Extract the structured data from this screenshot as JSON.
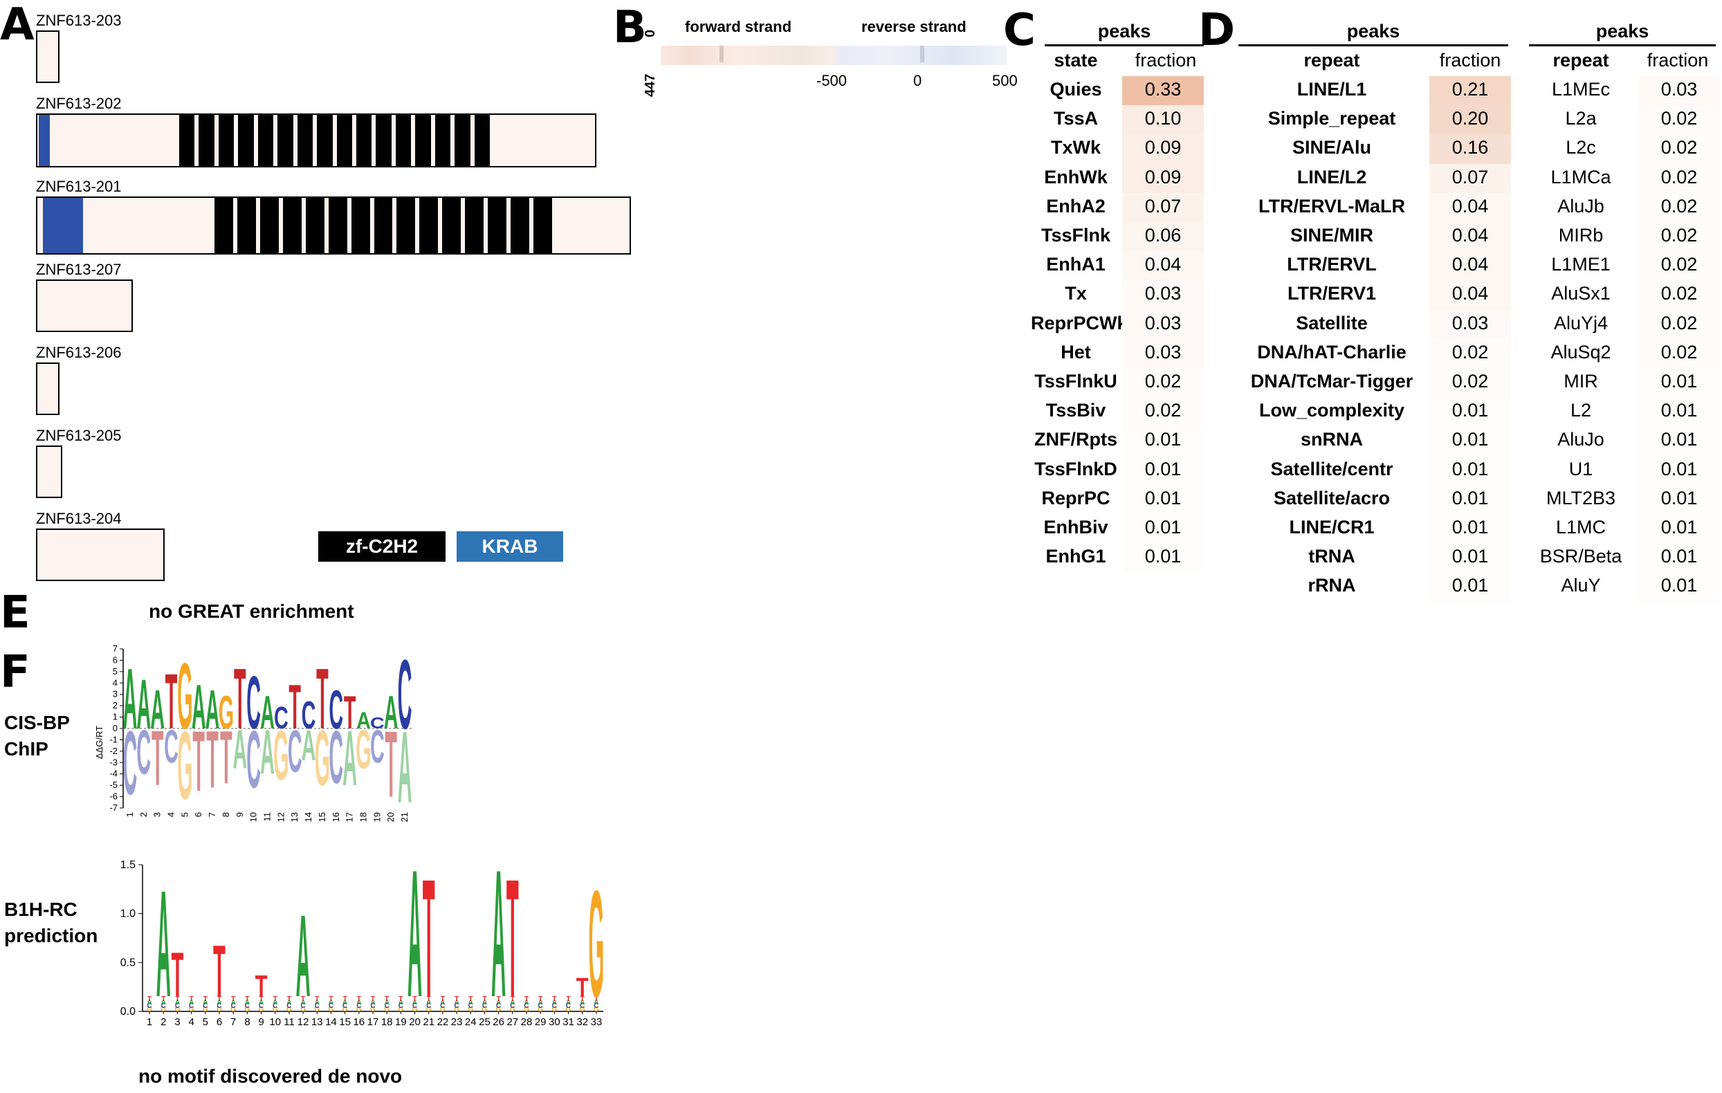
{
  "panelA": {
    "label": "A",
    "isoforms": [
      {
        "name": "ZNF613-203"
      },
      {
        "name": "ZNF613-202"
      },
      {
        "name": "ZNF613-201"
      },
      {
        "name": "ZNF613-207"
      },
      {
        "name": "ZNF613-206"
      },
      {
        "name": "ZNF613-205"
      },
      {
        "name": "ZNF613-204"
      }
    ],
    "legend": {
      "zf": {
        "label": "zf-C2H2",
        "color": "#000000"
      },
      "krab": {
        "label": "KRAB",
        "color": "#2e75b6"
      }
    }
  },
  "panelB": {
    "label": "B",
    "forward": "forward strand",
    "reverse": "reverse strand",
    "y_top": "0",
    "y_bottom": "447",
    "ticks": [
      "-500",
      "0",
      "500"
    ]
  },
  "panelC": {
    "label": "C",
    "header": "peaks",
    "col1": "state",
    "col2": "fraction",
    "rows": [
      {
        "name": "Quies",
        "value": "0.33",
        "level": 0.33
      },
      {
        "name": "TssA",
        "value": "0.10",
        "level": 0.1
      },
      {
        "name": "TxWk",
        "value": "0.09",
        "level": 0.09
      },
      {
        "name": "EnhWk",
        "value": "0.09",
        "level": 0.09
      },
      {
        "name": "EnhA2",
        "value": "0.07",
        "level": 0.07
      },
      {
        "name": "TssFlnk",
        "value": "0.06",
        "level": 0.06
      },
      {
        "name": "EnhA1",
        "value": "0.04",
        "level": 0.04
      },
      {
        "name": "Tx",
        "value": "0.03",
        "level": 0.03
      },
      {
        "name": "ReprPCWk",
        "value": "0.03",
        "level": 0.03
      },
      {
        "name": "Het",
        "value": "0.03",
        "level": 0.03
      },
      {
        "name": "TssFlnkU",
        "value": "0.02",
        "level": 0.02
      },
      {
        "name": "TssBiv",
        "value": "0.02",
        "level": 0.02
      },
      {
        "name": "ZNF/Rpts",
        "value": "0.01",
        "level": 0.01
      },
      {
        "name": "TssFlnkD",
        "value": "0.01",
        "level": 0.01
      },
      {
        "name": "ReprPC",
        "value": "0.01",
        "level": 0.01
      },
      {
        "name": "EnhBiv",
        "value": "0.01",
        "level": 0.01
      },
      {
        "name": "EnhG1",
        "value": "0.01",
        "level": 0.01
      }
    ]
  },
  "panelD": {
    "label": "D",
    "header": "peaks",
    "col1": "repeat",
    "col2": "fraction",
    "rows": [
      {
        "name": "LINE/L1",
        "value": "0.21",
        "level": 0.21
      },
      {
        "name": "Simple_repeat",
        "value": "0.20",
        "level": 0.2
      },
      {
        "name": "SINE/Alu",
        "value": "0.16",
        "level": 0.16
      },
      {
        "name": "LINE/L2",
        "value": "0.07",
        "level": 0.07
      },
      {
        "name": "LTR/ERVL-MaLR",
        "value": "0.04",
        "level": 0.04
      },
      {
        "name": "SINE/MIR",
        "value": "0.04",
        "level": 0.04
      },
      {
        "name": "LTR/ERVL",
        "value": "0.04",
        "level": 0.04
      },
      {
        "name": "LTR/ERV1",
        "value": "0.04",
        "level": 0.04
      },
      {
        "name": "Satellite",
        "value": "0.03",
        "level": 0.03
      },
      {
        "name": "DNA/hAT-Charlie",
        "value": "0.02",
        "level": 0.02
      },
      {
        "name": "DNA/TcMar-Tigger",
        "value": "0.02",
        "level": 0.02
      },
      {
        "name": "Low_complexity",
        "value": "0.01",
        "level": 0.01
      },
      {
        "name": "snRNA",
        "value": "0.01",
        "level": 0.01
      },
      {
        "name": "Satellite/centr",
        "value": "0.01",
        "level": 0.01
      },
      {
        "name": "Satellite/acro",
        "value": "0.01",
        "level": 0.01
      },
      {
        "name": "LINE/CR1",
        "value": "0.01",
        "level": 0.01
      },
      {
        "name": "tRNA",
        "value": "0.01",
        "level": 0.01
      },
      {
        "name": "rRNA",
        "value": "0.01",
        "level": 0.01
      }
    ],
    "header2": "peaks",
    "col3": "repeat",
    "col4": "fraction",
    "rows2": [
      {
        "name": "L1MEc",
        "value": "0.03",
        "level": 0.03
      },
      {
        "name": "L2a",
        "value": "0.02",
        "level": 0.02
      },
      {
        "name": "L2c",
        "value": "0.02",
        "level": 0.02
      },
      {
        "name": "L1MCa",
        "value": "0.02",
        "level": 0.02
      },
      {
        "name": "AluJb",
        "value": "0.02",
        "level": 0.02
      },
      {
        "name": "MIRb",
        "value": "0.02",
        "level": 0.02
      },
      {
        "name": "L1ME1",
        "value": "0.02",
        "level": 0.02
      },
      {
        "name": "AluSx1",
        "value": "0.02",
        "level": 0.02
      },
      {
        "name": "AluYj4",
        "value": "0.02",
        "level": 0.02
      },
      {
        "name": "AluSq2",
        "value": "0.02",
        "level": 0.02
      },
      {
        "name": "MIR",
        "value": "0.01",
        "level": 0.01
      },
      {
        "name": "L2",
        "value": "0.01",
        "level": 0.01
      },
      {
        "name": "AluJo",
        "value": "0.01",
        "level": 0.01
      },
      {
        "name": "U1",
        "value": "0.01",
        "level": 0.01
      },
      {
        "name": "MLT2B3",
        "value": "0.01",
        "level": 0.01
      },
      {
        "name": "L1MC",
        "value": "0.01",
        "level": 0.01
      },
      {
        "name": "BSR/Beta",
        "value": "0.01",
        "level": 0.01
      },
      {
        "name": "AluY",
        "value": "0.01",
        "level": 0.01
      }
    ]
  },
  "panelE": {
    "label": "E",
    "text": "no GREAT enrichment"
  },
  "panelF": {
    "label": "F",
    "cisbp_label_1": "CIS-BP",
    "cisbp_label_2": "ChIP",
    "cisbp_ylabel": "ΔΔG/RT",
    "cisbp_yticks": [
      "7",
      "6",
      "5",
      "4",
      "3",
      "2",
      "1",
      "0",
      "-1",
      "-2",
      "-3",
      "-4",
      "-5",
      "-6",
      "-7"
    ],
    "cisbp_xticks": [
      "1",
      "2",
      "3",
      "4",
      "5",
      "6",
      "7",
      "8",
      "9",
      "10",
      "11",
      "12",
      "13",
      "14",
      "15",
      "16",
      "17",
      "18",
      "19",
      "20",
      "21"
    ],
    "cisbp_top": [
      "A",
      "A",
      "A",
      "T",
      "G",
      "A",
      "A",
      "G",
      "T",
      "C",
      "A",
      "C",
      "T",
      "C",
      "T",
      "C",
      "T",
      "A",
      "C",
      "A",
      "C"
    ],
    "cisbp_bottom": [
      "C",
      "C",
      "T",
      "C",
      "G",
      "T",
      "T",
      "T",
      "A",
      "C",
      "A",
      "G",
      "C",
      "A",
      "G",
      "C",
      "A",
      "G",
      "C",
      "T",
      "A"
    ],
    "b1h_label_1": "B1H-RC",
    "b1h_label_2": "prediction",
    "b1h_yticks": [
      "1.5",
      "1.0",
      "0.5",
      "0.0"
    ],
    "b1h_xticks": [
      "1",
      "2",
      "3",
      "4",
      "5",
      "6",
      "7",
      "8",
      "9",
      "10",
      "11",
      "12",
      "13",
      "14",
      "15",
      "16",
      "17",
      "18",
      "19",
      "20",
      "21",
      "22",
      "23",
      "24",
      "25",
      "26",
      "27",
      "28",
      "29",
      "30",
      "31",
      "32",
      "33"
    ],
    "b1h_letters": [
      {
        "pos": 2,
        "letter": "A",
        "height": 1.28,
        "color": "#2a9d3a"
      },
      {
        "pos": 3,
        "letter": "T",
        "height": 0.62,
        "color": "#e8262a"
      },
      {
        "pos": 6,
        "letter": "T",
        "height": 0.7,
        "color": "#e8262a"
      },
      {
        "pos": 9,
        "letter": "T",
        "height": 0.38,
        "color": "#e8262a"
      },
      {
        "pos": 12,
        "letter": "A",
        "height": 1.02,
        "color": "#2a9d3a"
      },
      {
        "pos": 20,
        "letter": "A",
        "height": 1.5,
        "color": "#2a9d3a"
      },
      {
        "pos": 21,
        "letter": "T",
        "height": 1.4,
        "color": "#e8262a"
      },
      {
        "pos": 26,
        "letter": "A",
        "height": 1.5,
        "color": "#2a9d3a"
      },
      {
        "pos": 27,
        "letter": "T",
        "height": 1.4,
        "color": "#e8262a"
      },
      {
        "pos": 32,
        "letter": "T",
        "height": 0.35,
        "color": "#e8262a"
      },
      {
        "pos": 33,
        "letter": "G",
        "height": 1.28,
        "color": "#f5a623"
      }
    ],
    "bottom_text": "no motif discovered de novo"
  }
}
